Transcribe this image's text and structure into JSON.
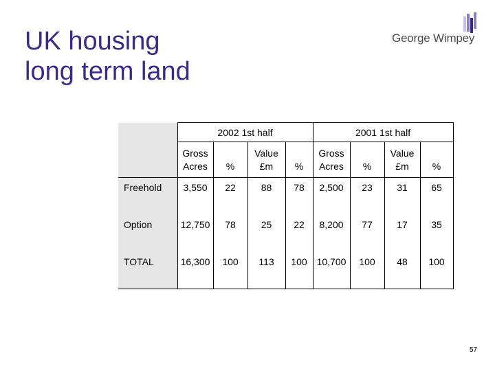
{
  "slide": {
    "title_line1": "UK housing",
    "title_line2": "long term land",
    "logo_text": "George Wimpey",
    "page_number": "57",
    "colors": {
      "title": "#3b2a86",
      "logo_mark": [
        "#3b2a86",
        "#8a7fc2",
        "#c9c2e8"
      ],
      "row_header_bg": "#e6e6e6"
    }
  },
  "table": {
    "groups": [
      "2002  1st half",
      "2001  1st half"
    ],
    "headers": {
      "gross_acres": [
        "Gross",
        "Acres"
      ],
      "pct": "%",
      "value": [
        "Value",
        "£m"
      ]
    },
    "rows": [
      {
        "label": "Freehold",
        "values": [
          "3,550",
          "22",
          "88",
          "78",
          "2,500",
          "23",
          "31",
          "65"
        ]
      },
      {
        "label": "Option",
        "values": [
          "12,750",
          "78",
          "25",
          "22",
          "8,200",
          "77",
          "17",
          "35"
        ]
      },
      {
        "label": "TOTAL",
        "values": [
          "16,300",
          "100",
          "113",
          "100",
          "10,700",
          "100",
          "48",
          "100"
        ]
      }
    ]
  }
}
